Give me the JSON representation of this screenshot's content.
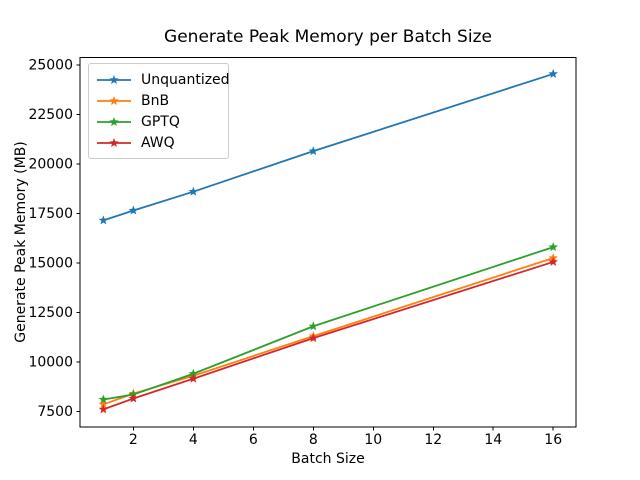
{
  "chart_data": {
    "type": "line",
    "title": "Generate Peak Memory per Batch Size",
    "xlabel": "Batch Size",
    "ylabel": "Generate Peak Memory (MB)",
    "x": [
      1,
      2,
      4,
      8,
      16
    ],
    "series": [
      {
        "name": "Unquantized",
        "color": "#1f77b4",
        "values": [
          17150,
          17650,
          18600,
          20650,
          24550
        ]
      },
      {
        "name": "BnB",
        "color": "#ff7f0e",
        "values": [
          7850,
          8400,
          9300,
          11300,
          15250
        ]
      },
      {
        "name": "GPTQ",
        "color": "#2ca02c",
        "values": [
          8100,
          8350,
          9400,
          11800,
          15800
        ]
      },
      {
        "name": "AWQ",
        "color": "#d62728",
        "values": [
          7600,
          8150,
          9150,
          11200,
          15050
        ]
      }
    ],
    "marker": "star",
    "xticks": [
      2,
      4,
      6,
      8,
      10,
      12,
      14,
      16
    ],
    "yticks": [
      7500,
      10000,
      12500,
      15000,
      17500,
      20000,
      22500,
      25000
    ],
    "xlim": [
      0.22,
      16.76
    ],
    "ylim": [
      6700,
      25375
    ],
    "grid": false,
    "legend_position": "upper-left",
    "axis_color": "#000000",
    "background_color": "#ffffff"
  }
}
